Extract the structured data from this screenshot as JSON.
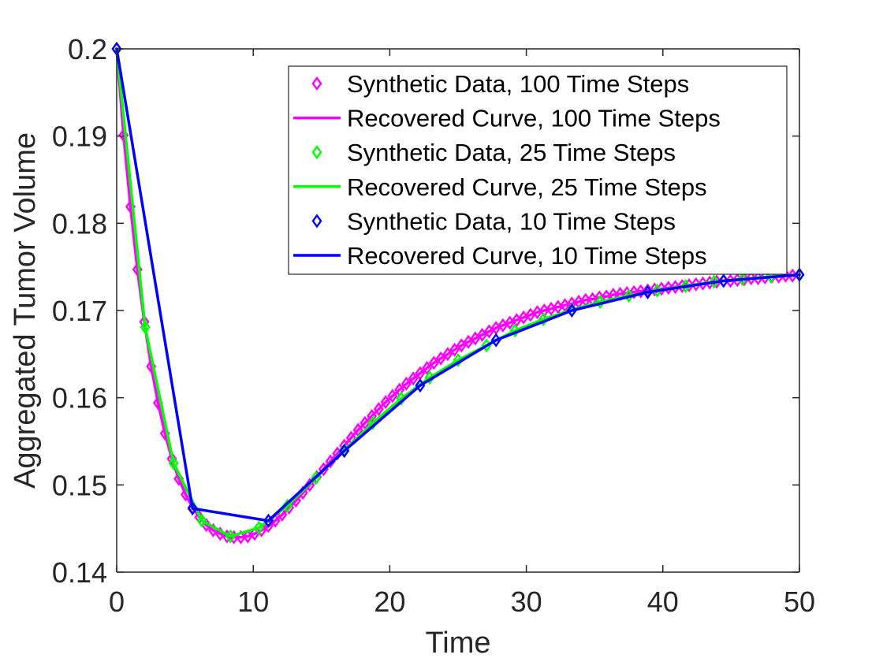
{
  "chart_data": {
    "type": "line",
    "title": "",
    "xlabel": "Time",
    "ylabel": "Aggregated Tumor Volume",
    "xlim": [
      0,
      50
    ],
    "ylim": [
      0.14,
      0.2
    ],
    "xticks": [
      0,
      10,
      20,
      30,
      40,
      50
    ],
    "xtick_labels": [
      "0",
      "10",
      "20",
      "30",
      "40",
      "50"
    ],
    "yticks": [
      0.14,
      0.15,
      0.16,
      0.17,
      0.18,
      0.19,
      0.2
    ],
    "ytick_labels": [
      "0.14",
      "0.15",
      "0.16",
      "0.17",
      "0.18",
      "0.19",
      "0.2"
    ],
    "grid": false,
    "legend_position": "top-right",
    "series": [
      {
        "name": "Synthetic Data, 100 Time Steps",
        "kind": "markers",
        "marker": "diamond",
        "color": "#ff00ff",
        "x": [
          0,
          0.505,
          1.01,
          1.515,
          2.02,
          2.525,
          3.03,
          3.535,
          4.04,
          4.545,
          5.051,
          5.556,
          6.061,
          6.566,
          7.071,
          7.576,
          8.081,
          8.586,
          9.091,
          9.596,
          10.101,
          10.606,
          11.111,
          11.616,
          12.121,
          12.626,
          13.131,
          13.636,
          14.141,
          14.646,
          15.152,
          15.657,
          16.162,
          16.667,
          17.172,
          17.677,
          18.182,
          18.687,
          19.192,
          19.697,
          20.202,
          20.707,
          21.212,
          21.717,
          22.222,
          22.727,
          23.232,
          23.737,
          24.242,
          24.747,
          25.253,
          25.758,
          26.263,
          26.768,
          27.273,
          27.778,
          28.283,
          28.788,
          29.293,
          29.798,
          30.303,
          30.808,
          31.313,
          31.818,
          32.323,
          32.828,
          33.333,
          33.838,
          34.343,
          34.848,
          35.354,
          35.859,
          36.364,
          36.869,
          37.374,
          37.879,
          38.384,
          38.889,
          39.394,
          39.899,
          40.404,
          40.909,
          41.414,
          41.919,
          42.424,
          42.929,
          43.434,
          43.939,
          44.444,
          44.949,
          45.455,
          45.96,
          46.465,
          46.97,
          47.475,
          47.98,
          48.485,
          48.99,
          49.495,
          50
        ],
        "y": [
          0.2,
          0.1901,
          0.1819,
          0.1747,
          0.1687,
          0.1636,
          0.1594,
          0.1559,
          0.153,
          0.1507,
          0.1489,
          0.1474,
          0.1463,
          0.1454,
          0.1448,
          0.1444,
          0.1441,
          0.144,
          0.144,
          0.1441,
          0.1444,
          0.1448,
          0.1453,
          0.1459,
          0.1466,
          0.1474,
          0.1482,
          0.1491,
          0.15,
          0.1509,
          0.1518,
          0.1527,
          0.1536,
          0.1545,
          0.1554,
          0.1563,
          0.1571,
          0.1579,
          0.1587,
          0.1595,
          0.1602,
          0.1609,
          0.1616,
          0.1622,
          0.1628,
          0.1634,
          0.164,
          0.1645,
          0.165,
          0.1655,
          0.166,
          0.1664,
          0.1668,
          0.1672,
          0.1676,
          0.168,
          0.1683,
          0.1686,
          0.1689,
          0.1692,
          0.1695,
          0.1698,
          0.17,
          0.1702,
          0.1704,
          0.1706,
          0.1708,
          0.171,
          0.1712,
          0.1713,
          0.1715,
          0.1716,
          0.1718,
          0.1719,
          0.172,
          0.1721,
          0.1722,
          0.1723,
          0.1724,
          0.1725,
          0.1726,
          0.1727,
          0.1728,
          0.1729,
          0.173,
          0.1731,
          0.1732,
          0.1733,
          0.1734,
          0.1734,
          0.1735,
          0.1736,
          0.1737,
          0.1737,
          0.1738,
          0.1739,
          0.1739,
          0.174,
          0.174,
          0.1741
        ]
      },
      {
        "name": "Recovered Curve, 100 Time Steps",
        "kind": "line",
        "color": "#ff00ff",
        "x": [
          0,
          0.505,
          1.01,
          1.515,
          2.02,
          2.525,
          3.03,
          3.535,
          4.04,
          4.545,
          5.051,
          5.556,
          6.061,
          6.566,
          7.071,
          7.576,
          8.081,
          8.586,
          9.091,
          9.596,
          10.101,
          10.606,
          11.111,
          11.616,
          12.121,
          12.626,
          13.131,
          13.636,
          14.141,
          14.646,
          15.152,
          15.657,
          16.162,
          16.667,
          17.172,
          17.677,
          18.182,
          18.687,
          19.192,
          19.697,
          20.202,
          20.707,
          21.212,
          21.717,
          22.222,
          22.727,
          23.232,
          23.737,
          24.242,
          24.747,
          25.253,
          25.758,
          26.263,
          26.768,
          27.273,
          27.778,
          28.283,
          28.788,
          29.293,
          29.798,
          30.303,
          30.808,
          31.313,
          31.818,
          32.323,
          32.828,
          33.333,
          33.838,
          34.343,
          34.848,
          35.354,
          35.859,
          36.364,
          36.869,
          37.374,
          37.879,
          38.384,
          38.889,
          39.394,
          39.899,
          40.404,
          40.909,
          41.414,
          41.919,
          42.424,
          42.929,
          43.434,
          43.939,
          44.444,
          44.949,
          45.455,
          45.96,
          46.465,
          46.97,
          47.475,
          47.98,
          48.485,
          48.99,
          49.495,
          50
        ],
        "y": [
          0.2,
          0.1901,
          0.1819,
          0.1747,
          0.1687,
          0.1636,
          0.1594,
          0.1559,
          0.153,
          0.1507,
          0.1489,
          0.1474,
          0.1463,
          0.1454,
          0.1448,
          0.1444,
          0.1441,
          0.144,
          0.144,
          0.1441,
          0.1444,
          0.1448,
          0.1453,
          0.1459,
          0.1466,
          0.1474,
          0.1482,
          0.1491,
          0.15,
          0.1509,
          0.1518,
          0.1527,
          0.1536,
          0.1545,
          0.1554,
          0.1563,
          0.1571,
          0.1579,
          0.1587,
          0.1595,
          0.1602,
          0.1609,
          0.1616,
          0.1622,
          0.1628,
          0.1634,
          0.164,
          0.1645,
          0.165,
          0.1655,
          0.166,
          0.1664,
          0.1668,
          0.1672,
          0.1676,
          0.168,
          0.1683,
          0.1686,
          0.1689,
          0.1692,
          0.1695,
          0.1698,
          0.17,
          0.1702,
          0.1704,
          0.1706,
          0.1708,
          0.171,
          0.1712,
          0.1713,
          0.1715,
          0.1716,
          0.1718,
          0.1719,
          0.172,
          0.1721,
          0.1722,
          0.1723,
          0.1724,
          0.1725,
          0.1726,
          0.1727,
          0.1728,
          0.1729,
          0.173,
          0.1731,
          0.1732,
          0.1733,
          0.1734,
          0.1734,
          0.1735,
          0.1736,
          0.1737,
          0.1737,
          0.1738,
          0.1739,
          0.1739,
          0.174,
          0.174,
          0.1741
        ]
      },
      {
        "name": "Synthetic Data, 25 Time Steps",
        "kind": "markers",
        "marker": "diamond",
        "color": "#00ff00",
        "x": [
          0,
          2.083,
          4.167,
          6.25,
          8.333,
          10.417,
          12.5,
          14.583,
          16.667,
          18.75,
          20.833,
          22.917,
          25,
          27.083,
          29.167,
          31.25,
          33.333,
          35.417,
          37.5,
          39.583,
          41.667,
          43.75,
          45.833,
          47.917,
          50
        ],
        "y": [
          0.2,
          0.1681,
          0.1525,
          0.1459,
          0.1441,
          0.1451,
          0.1476,
          0.1508,
          0.154,
          0.1571,
          0.1599,
          0.1623,
          0.1643,
          0.166,
          0.1677,
          0.169,
          0.1701,
          0.171,
          0.1717,
          0.1723,
          0.1728,
          0.1733,
          0.1736,
          0.1739,
          0.1741
        ]
      },
      {
        "name": "Recovered Curve, 25 Time Steps",
        "kind": "line",
        "color": "#00ff00",
        "x": [
          0,
          2.083,
          4.167,
          6.25,
          8.333,
          10.417,
          12.5,
          14.583,
          16.667,
          18.75,
          20.833,
          22.917,
          25,
          27.083,
          29.167,
          31.25,
          33.333,
          35.417,
          37.5,
          39.583,
          41.667,
          43.75,
          45.833,
          47.917,
          50
        ],
        "y": [
          0.2,
          0.1681,
          0.1525,
          0.1459,
          0.1441,
          0.1451,
          0.1476,
          0.1508,
          0.154,
          0.1571,
          0.1599,
          0.1623,
          0.1643,
          0.166,
          0.1677,
          0.169,
          0.1701,
          0.171,
          0.1717,
          0.1723,
          0.1728,
          0.1733,
          0.1736,
          0.1739,
          0.1741
        ]
      },
      {
        "name": "Synthetic Data, 10 Time Steps",
        "kind": "markers",
        "marker": "diamond",
        "color": "#0000ff",
        "x": [
          0,
          5.556,
          11.111,
          16.667,
          22.222,
          27.778,
          33.333,
          38.889,
          44.444,
          50
        ],
        "y": [
          0.2,
          0.1473,
          0.1459,
          0.1539,
          0.1614,
          0.1666,
          0.17,
          0.1721,
          0.1734,
          0.1741
        ]
      },
      {
        "name": "Recovered Curve, 10 Time Steps",
        "kind": "line",
        "color": "#0000ff",
        "x": [
          0,
          5.556,
          11.111,
          16.667,
          22.222,
          27.778,
          33.333,
          38.889,
          44.444,
          50
        ],
        "y": [
          0.2,
          0.1473,
          0.1459,
          0.1539,
          0.1614,
          0.1666,
          0.17,
          0.1721,
          0.1734,
          0.1741
        ]
      }
    ]
  }
}
